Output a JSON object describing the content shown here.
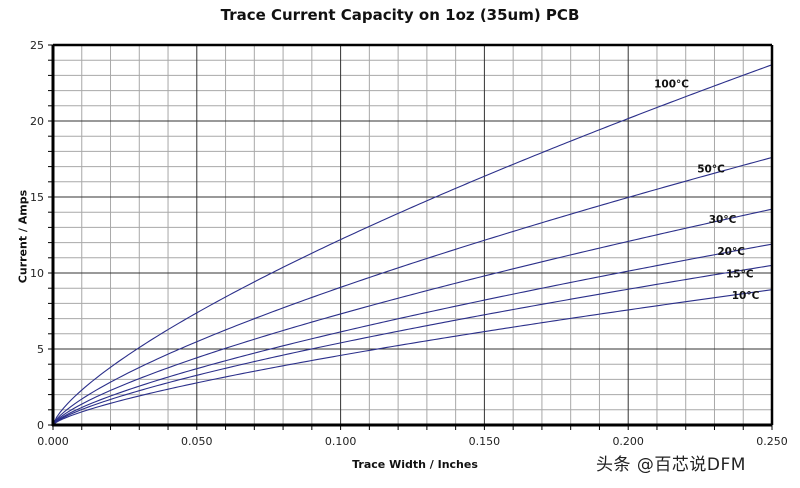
{
  "chart": {
    "title": "Trace Current Capacity on 1oz (35um) PCB",
    "xlabel": "Trace Width / Inches",
    "ylabel": "Current / Amps",
    "watermark": "头条 @百芯说DFM"
  },
  "chart_data": {
    "type": "line",
    "title": "Trace Current Capacity on 1oz (35um) PCB",
    "xlabel": "Trace Width / Inches",
    "ylabel": "Current / Amps",
    "xlim": [
      0,
      0.25
    ],
    "ylim": [
      0,
      25
    ],
    "x_ticks": [
      "0.000",
      "0.050",
      "0.100",
      "0.150",
      "0.200",
      "0.250"
    ],
    "y_ticks": [
      "0",
      "5",
      "10",
      "15",
      "20",
      "25"
    ],
    "grid": true,
    "legend_position": "inline labels near right end of each curve",
    "x": [
      0,
      0.01,
      0.025,
      0.05,
      0.075,
      0.1,
      0.125,
      0.15,
      0.175,
      0.2,
      0.225,
      0.25
    ],
    "series": [
      {
        "name": "100°C",
        "values": [
          0,
          2.3,
          4.5,
          7.4,
          9.9,
          12.2,
          14.3,
          16.4,
          18.3,
          20.2,
          22.0,
          23.7
        ]
      },
      {
        "name": "50°C",
        "values": [
          0,
          1.7,
          3.3,
          5.5,
          7.3,
          9.1,
          10.6,
          12.2,
          13.6,
          15.0,
          16.3,
          17.6
        ]
      },
      {
        "name": "30°C",
        "values": [
          0,
          1.4,
          2.7,
          4.4,
          5.9,
          7.3,
          8.6,
          9.8,
          11.0,
          12.1,
          13.2,
          14.2
        ]
      },
      {
        "name": "20°C",
        "values": [
          0,
          1.2,
          2.2,
          3.7,
          5.0,
          6.1,
          7.2,
          8.2,
          9.2,
          10.1,
          11.0,
          11.9
        ]
      },
      {
        "name": "15°C",
        "values": [
          0,
          1.0,
          2.0,
          3.3,
          4.4,
          5.4,
          6.4,
          7.2,
          8.1,
          8.9,
          9.7,
          10.5
        ]
      },
      {
        "name": "10°C",
        "values": [
          0,
          0.9,
          1.7,
          2.8,
          3.7,
          4.6,
          5.4,
          6.1,
          6.9,
          7.6,
          8.2,
          8.9
        ]
      }
    ],
    "label_positions": [
      {
        "name": "100°C",
        "x": 0.209,
        "y": 22.2
      },
      {
        "name": "50°C",
        "x": 0.224,
        "y": 16.6
      },
      {
        "name": "30°C",
        "x": 0.228,
        "y": 13.3
      },
      {
        "name": "20°C",
        "x": 0.231,
        "y": 11.2
      },
      {
        "name": "15°C",
        "x": 0.234,
        "y": 9.7
      },
      {
        "name": "10°C",
        "x": 0.236,
        "y": 8.3
      }
    ],
    "line_color": "#2b2f8a"
  }
}
